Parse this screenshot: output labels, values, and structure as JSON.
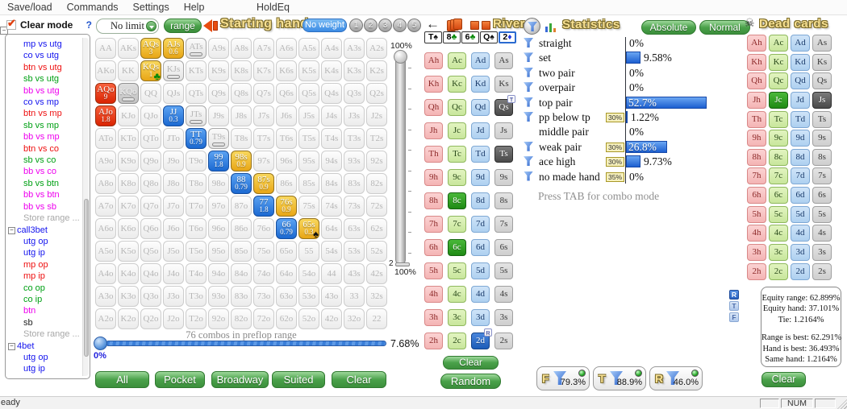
{
  "menu": {
    "items": [
      "Save/load",
      "Commands",
      "Settings",
      "Help"
    ],
    "app_title": "HoldEq"
  },
  "sidebar": {
    "mode_label": "Clear mode",
    "help_label": "?",
    "items": [
      {
        "label": "mp vs utg",
        "color": "#1414ee"
      },
      {
        "label": "co vs utg",
        "color": "#1414ee"
      },
      {
        "label": "btn vs utg",
        "color": "#ee1010"
      },
      {
        "label": "sb vs utg",
        "color": "#00a014"
      },
      {
        "label": "bb vs utg",
        "color": "#ee00ee"
      },
      {
        "label": "co vs mp",
        "color": "#1414ee"
      },
      {
        "label": "btn vs mp",
        "color": "#ee1010"
      },
      {
        "label": "sb vs mp",
        "color": "#00a014"
      },
      {
        "label": "bb vs mp",
        "color": "#ee00ee"
      },
      {
        "label": "btn vs co",
        "color": "#ee1010"
      },
      {
        "label": "sb vs co",
        "color": "#00a014"
      },
      {
        "label": "bb vs co",
        "color": "#ee00ee"
      },
      {
        "label": "sb vs btn",
        "color": "#00a014"
      },
      {
        "label": "bb vs btn",
        "color": "#ee00ee"
      },
      {
        "label": "bb vs sb",
        "color": "#ee00ee"
      },
      {
        "label": "Store range ...",
        "color": "#a8a8a8"
      },
      {
        "label": "call3bet",
        "color": "#1414ee",
        "group": true
      },
      {
        "label": "utg op",
        "color": "#1414ee"
      },
      {
        "label": "utg ip",
        "color": "#1414ee"
      },
      {
        "label": "mp op",
        "color": "#ee1010"
      },
      {
        "label": "mp ip",
        "color": "#ee1010"
      },
      {
        "label": "co op",
        "color": "#00a014"
      },
      {
        "label": "co ip",
        "color": "#00a014"
      },
      {
        "label": "btn",
        "color": "#ee00ee"
      },
      {
        "label": "sb",
        "color": "#202020"
      },
      {
        "label": "Store range ...",
        "color": "#a8a8a8"
      },
      {
        "label": "4bet",
        "color": "#1414ee",
        "group": true
      },
      {
        "label": "utg op",
        "color": "#1414ee"
      },
      {
        "label": "utg ip",
        "color": "#1414ee"
      }
    ]
  },
  "range_controls": {
    "limit_select_value": "No limit",
    "range_button": "range",
    "title": "Starting hand",
    "no_weight_button": "No weight",
    "weight_buttons": [
      "1",
      "2",
      "3",
      "4",
      "5"
    ]
  },
  "hand_grid": {
    "rows": [
      [
        "AA",
        "AKs",
        "AQs",
        "AJs",
        "ATs",
        "A9s",
        "A8s",
        "A7s",
        "A6s",
        "A5s",
        "A4s",
        "A3s",
        "A2s"
      ],
      [
        "AKo",
        "KK",
        "KQs",
        "KJs",
        "KTs",
        "K9s",
        "K8s",
        "K7s",
        "K6s",
        "K5s",
        "K4s",
        "K3s",
        "K2s"
      ],
      [
        "AQo",
        "KQo",
        "QQ",
        "QJs",
        "QTs",
        "Q9s",
        "Q8s",
        "Q7s",
        "Q6s",
        "Q5s",
        "Q4s",
        "Q3s",
        "Q2s"
      ],
      [
        "AJo",
        "KJo",
        "QJo",
        "JJ",
        "JTs",
        "J9s",
        "J8s",
        "J7s",
        "J6s",
        "J5s",
        "J4s",
        "J3s",
        "J2s"
      ],
      [
        "ATo",
        "KTo",
        "QTo",
        "JTo",
        "TT",
        "T9s",
        "T8s",
        "T7s",
        "T6s",
        "T5s",
        "T4s",
        "T3s",
        "T2s"
      ],
      [
        "A9o",
        "K9o",
        "Q9o",
        "J9o",
        "T9o",
        "99",
        "98s",
        "97s",
        "96s",
        "95s",
        "94s",
        "93s",
        "92s"
      ],
      [
        "A8o",
        "K8o",
        "Q8o",
        "J8o",
        "T8o",
        "98o",
        "88",
        "87s",
        "86s",
        "85s",
        "84s",
        "83s",
        "82s"
      ],
      [
        "A7o",
        "K7o",
        "Q7o",
        "J7o",
        "T7o",
        "97o",
        "87o",
        "77",
        "76s",
        "75s",
        "74s",
        "73s",
        "72s"
      ],
      [
        "A6o",
        "K6o",
        "Q6o",
        "J6o",
        "T6o",
        "96o",
        "86o",
        "76o",
        "66",
        "65s",
        "64s",
        "63s",
        "62s"
      ],
      [
        "A5o",
        "K5o",
        "Q5o",
        "J5o",
        "T5o",
        "95o",
        "85o",
        "75o",
        "65o",
        "55",
        "54s",
        "53s",
        "52s"
      ],
      [
        "A4o",
        "K4o",
        "Q4o",
        "J4o",
        "T4o",
        "94o",
        "84o",
        "74o",
        "64o",
        "54o",
        "44",
        "43s",
        "42s"
      ],
      [
        "A3o",
        "K3o",
        "Q3o",
        "J3o",
        "T3o",
        "93o",
        "83o",
        "73o",
        "63o",
        "53o",
        "43o",
        "33",
        "32s"
      ],
      [
        "A2o",
        "K2o",
        "Q2o",
        "J2o",
        "T2o",
        "92o",
        "82o",
        "72o",
        "62o",
        "52o",
        "42o",
        "32o",
        "22"
      ]
    ],
    "special": {
      "AQs": {
        "type": "yellow",
        "weight": "3"
      },
      "AJs": {
        "type": "yellow",
        "weight": "0.6"
      },
      "KQs": {
        "type": "yellow",
        "weight": "1",
        "suit": "club"
      },
      "AQo": {
        "type": "red",
        "weight": "9"
      },
      "AJo": {
        "type": "red",
        "weight": "1.8"
      },
      "JJ": {
        "type": "blue",
        "weight": "0.3"
      },
      "TT": {
        "type": "blue",
        "weight": "0.79"
      },
      "99": {
        "type": "blue",
        "weight": "1.8"
      },
      "98s": {
        "type": "yellow",
        "weight": "0.9"
      },
      "88": {
        "type": "blue",
        "weight": "0.79"
      },
      "87s": {
        "type": "yellow",
        "weight": "0.9"
      },
      "77": {
        "type": "blue",
        "weight": "1.8"
      },
      "76s": {
        "type": "yellow",
        "weight": "0.9"
      },
      "66": {
        "type": "blue",
        "weight": "0.79"
      },
      "65s": {
        "type": "yellow",
        "weight": "0.3",
        "suit": "spade"
      },
      "ATs": {
        "type": "marked"
      },
      "KJs": {
        "type": "marked"
      },
      "KQo": {
        "type": "marked",
        "dark": true
      },
      "JTs": {
        "type": "marked"
      },
      "T9s": {
        "type": "marked"
      }
    },
    "combos_label": "76 combos in preflop range",
    "weight_slider": {
      "top_label": "100%",
      "bottom_value": "2",
      "bottom_label": "100%"
    },
    "range_slider": {
      "value_label": "7.68%",
      "left_label": "0%"
    }
  },
  "preset_buttons": [
    "All",
    "Pocket",
    "Broadway",
    "Suited",
    "Clear"
  ],
  "board": {
    "title": "River",
    "cards": [
      {
        "rank": "T",
        "suit": "spade"
      },
      {
        "rank": "8",
        "suit": "club"
      },
      {
        "rank": "6",
        "suit": "club"
      },
      {
        "rank": "Q",
        "suit": "spade"
      },
      {
        "rank": "2",
        "suit": "diamond",
        "selected": true
      }
    ],
    "ranks": [
      "A",
      "K",
      "Q",
      "J",
      "T",
      "9",
      "8",
      "7",
      "6",
      "5",
      "4",
      "3",
      "2"
    ],
    "suits": [
      "h",
      "c",
      "d",
      "s"
    ],
    "selected": [
      "Qs",
      "Ts",
      "8c",
      "6c",
      "2d"
    ],
    "badges": {
      "Qs": "T",
      "2d": "R"
    },
    "clear_button": "Clear",
    "random_button": "Random"
  },
  "statistics": {
    "title": "Statistics",
    "absolute_button": "Absolute",
    "normal_button": "Normal",
    "rows": [
      {
        "label": "straight",
        "value": "0%",
        "bar": 0,
        "funnel": true
      },
      {
        "label": "set",
        "value": "9.58%",
        "bar": 9.58,
        "funnel": true
      },
      {
        "label": "two pair",
        "value": "0%",
        "bar": 0,
        "funnel": true
      },
      {
        "label": "overpair",
        "value": "0%",
        "bar": 0,
        "funnel": true
      },
      {
        "label": "top pair",
        "value": "52.7%",
        "bar": 52.7,
        "funnel": true,
        "inside": true
      },
      {
        "label": "pp below tp",
        "badge": "30%",
        "value": "1.22%",
        "bar": 1.22,
        "funnel": true
      },
      {
        "label": "middle pair",
        "value": "0%",
        "bar": 0,
        "funnel": false
      },
      {
        "label": "weak pair",
        "badge": "30%",
        "value": "26.8%",
        "bar": 26.8,
        "funnel": true,
        "inside": true
      },
      {
        "label": "ace high",
        "badge": "30%",
        "value": "9.73%",
        "bar": 9.73,
        "funnel": true
      },
      {
        "label": "no made hand",
        "badge": "35%",
        "value": "0%",
        "bar": 0,
        "funnel": true
      }
    ],
    "hint": "Press TAB for combo mode",
    "bar_color": "#2a62cc"
  },
  "street_filters": [
    {
      "letter": "F",
      "value": "79.3%"
    },
    {
      "letter": "T",
      "value": "88.9%"
    },
    {
      "letter": "R",
      "value": "46.0%"
    }
  ],
  "dead_cards": {
    "title": "Dead cards",
    "ranks": [
      "A",
      "K",
      "Q",
      "J",
      "T",
      "9",
      "8",
      "7",
      "6",
      "5",
      "4",
      "3",
      "2"
    ],
    "suits": [
      "h",
      "c",
      "d",
      "s"
    ],
    "selected": [
      "Jc",
      "Js"
    ]
  },
  "equity": {
    "toggle_buttons": [
      {
        "label": "R",
        "active": true
      },
      {
        "label": "T",
        "active": false
      },
      {
        "label": "F",
        "active": false
      }
    ],
    "lines": [
      "Equity range: 62.899%",
      "Equity hand: 37.101%",
      "Tie: 1.2164%",
      "",
      "Range is best: 62.291%",
      "Hand is best: 36.493%",
      "Same hand: 1.2164%"
    ],
    "clear_button": "Clear"
  },
  "status_bar": {
    "left": "eady",
    "num": "NUM"
  }
}
